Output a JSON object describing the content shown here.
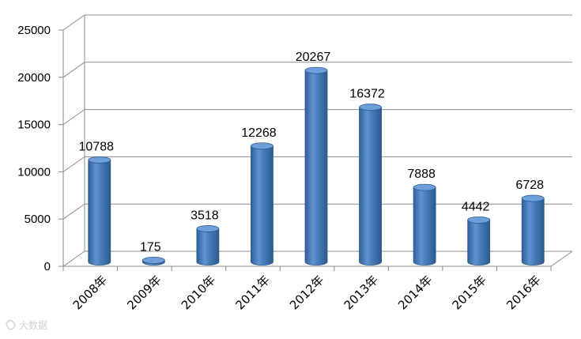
{
  "chart_data": {
    "type": "bar",
    "categories": [
      "2008年",
      "2009年",
      "2010年",
      "2011年",
      "2012年",
      "2013年",
      "2014年",
      "2015年",
      "2016年"
    ],
    "values": [
      10788,
      175,
      3518,
      12268,
      20267,
      16372,
      7888,
      4442,
      6728
    ],
    "value_labels": [
      "10788",
      "175",
      "3518",
      "12268",
      "20267",
      "16372",
      "7888",
      "4442",
      "6728"
    ],
    "y_ticks": [
      "0",
      "5000",
      "10000",
      "15000",
      "20000",
      "25000"
    ],
    "ylim": [
      0,
      25000
    ],
    "grid": true,
    "legend": "none",
    "style": "3d-cylinder",
    "colors": {
      "bar_main": "#4a7ebb",
      "bar_dark": "#2b5a8f",
      "bar_light": "#8db3e2",
      "bar_top": "#6f9fd8",
      "grid": "#8c8c8c",
      "wall": "#ffffff"
    }
  },
  "watermark": {
    "text": "大数据"
  }
}
